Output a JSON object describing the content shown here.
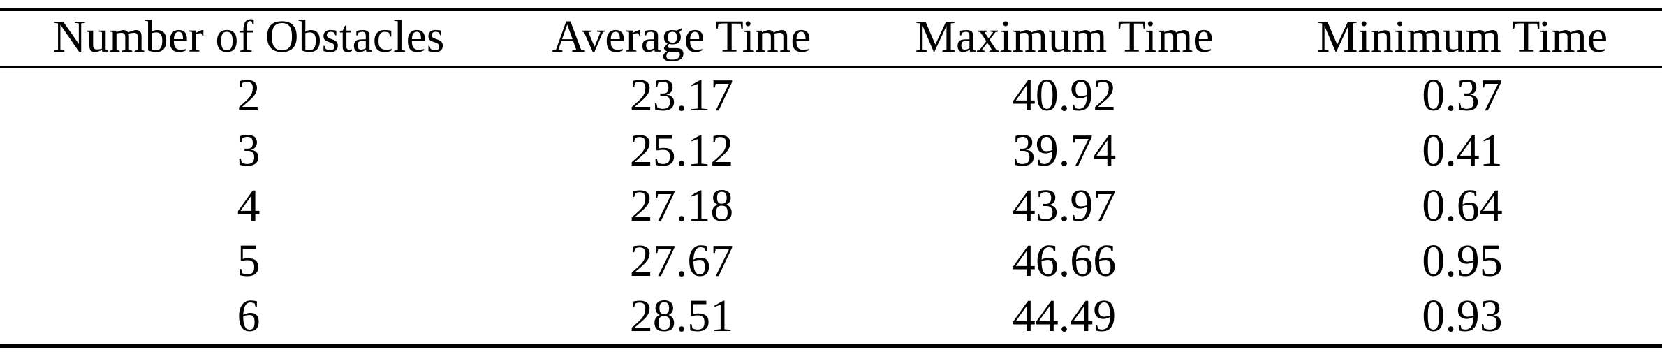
{
  "table": {
    "columns": [
      "Number of Obstacles",
      "Average Time",
      "Maximum Time",
      "Minimum Time"
    ],
    "rows": [
      [
        "2",
        "23.17",
        "40.92",
        "0.37"
      ],
      [
        "3",
        "25.12",
        "39.74",
        "0.41"
      ],
      [
        "4",
        "27.18",
        "43.97",
        "0.64"
      ],
      [
        "5",
        "27.67",
        "46.66",
        "0.95"
      ],
      [
        "6",
        "28.51",
        "44.49",
        "0.93"
      ]
    ]
  }
}
